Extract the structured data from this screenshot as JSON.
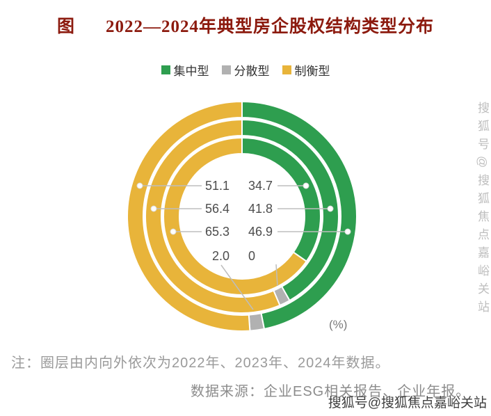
{
  "header": {
    "prefix": "图",
    "title": "2022—2024年典型房企股权结构类型分布"
  },
  "legend": [
    {
      "label": "集中型",
      "color": "#2e9e4f"
    },
    {
      "label": "分散型",
      "color": "#b1b1b1"
    },
    {
      "label": "制衡型",
      "color": "#e8b43a"
    }
  ],
  "chart_data": {
    "type": "pie",
    "subtype": "concentric-donut-3-rings",
    "title": "2022—2024年典型房企股权结构类型分布",
    "unit": "(%)",
    "legend_position": "top",
    "categories": [
      "集中型",
      "分散型",
      "制衡型"
    ],
    "colors": [
      "#2e9e4f",
      "#b1b1b1",
      "#e8b43a"
    ],
    "ring_order": "圈层由内向外依次为2022年、2023年、2024年",
    "rings_inner_to_outer": [
      {
        "year": "2022",
        "values": [
          34.7,
          0,
          65.3
        ]
      },
      {
        "year": "2023",
        "values": [
          41.8,
          1.8,
          56.4
        ]
      },
      {
        "year": "2024",
        "values": [
          46.9,
          2.0,
          51.1
        ]
      }
    ],
    "data_labels": {
      "rows": [
        {
          "left": "51.1",
          "right": "34.7"
        },
        {
          "left": "56.4",
          "right": "41.8"
        },
        {
          "left": "65.3",
          "right": "46.9"
        },
        {
          "left": "2.0",
          "right": "0"
        }
      ]
    }
  },
  "unit_label": "(%)",
  "footnotes": {
    "note": "注：圈层由内向外依次为2022年、2023年、2024年数据。",
    "source": "数据来源：企业ESG相关报告、企业年报。"
  },
  "watermark": {
    "vertical": "搜狐号@搜狐焦点嘉峪关站",
    "bottom": "搜狐号@搜狐焦点嘉峪关站"
  }
}
